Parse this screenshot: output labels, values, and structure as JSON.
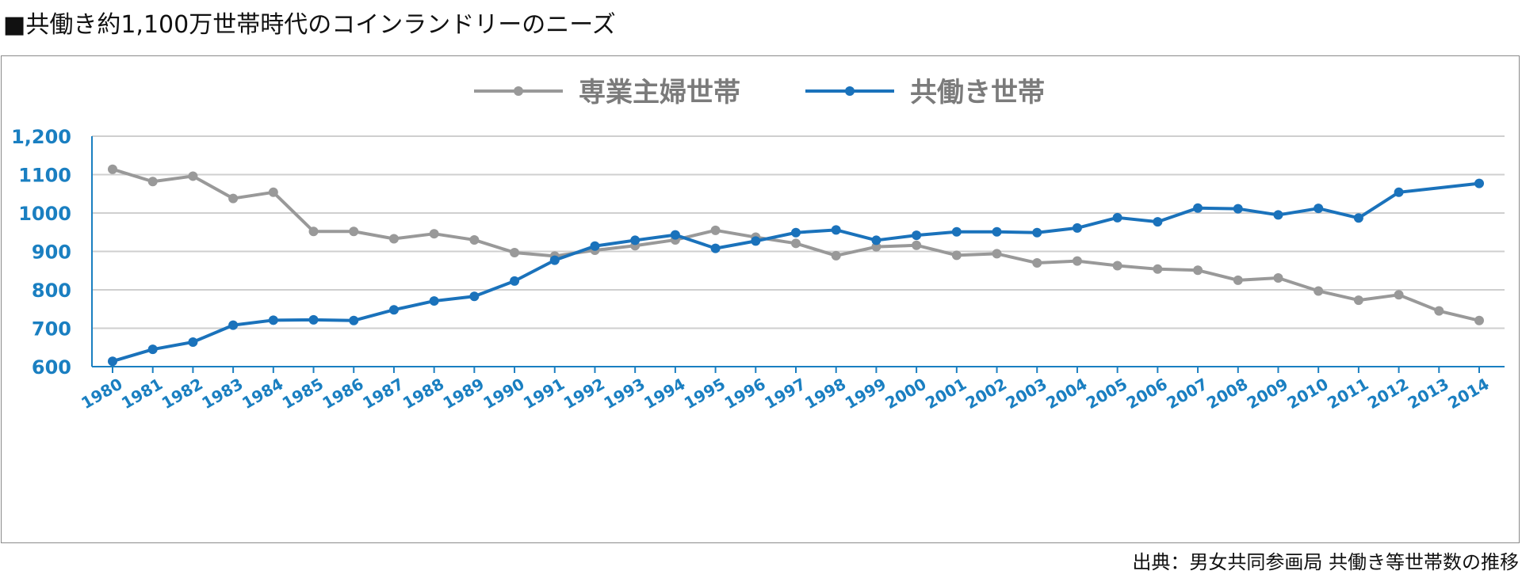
{
  "heading": "■共働き約1,100万世帯時代のコインランドリーのニーズ",
  "source": "出典：男女共同参画局 共働き等世帯数の推移",
  "chart_data": {
    "type": "line",
    "title": "",
    "xlabel": "",
    "ylabel": "",
    "ylim": [
      600,
      1200
    ],
    "y_ticks": [
      "600",
      "700",
      "800",
      "900",
      "1000",
      "1100",
      "1,200"
    ],
    "grid": true,
    "legend_position": "top-center",
    "x": [
      "1980",
      "1981",
      "1982",
      "1983",
      "1984",
      "1985",
      "1986",
      "1987",
      "1988",
      "1989",
      "1990",
      "1991",
      "1992",
      "1993",
      "1994",
      "1995",
      "1996",
      "1997",
      "1998",
      "1999",
      "2000",
      "2001",
      "2002",
      "2003",
      "2004",
      "2005",
      "2006",
      "2007",
      "2008",
      "2009",
      "2010",
      "2011",
      "2012",
      "2013",
      "2014"
    ],
    "series": [
      {
        "name": "専業主婦世帯",
        "color": "#999999",
        "values": [
          1114,
          1082,
          1096,
          1038,
          1054,
          952,
          952,
          933,
          946,
          930,
          897,
          888,
          903,
          915,
          930,
          955,
          937,
          921,
          889,
          912,
          916,
          890,
          894,
          870,
          875,
          863,
          854,
          851,
          825,
          831,
          797,
          773,
          787,
          745,
          720
        ]
      },
      {
        "name": "共働き世帯",
        "color": "#1a72bb",
        "values": [
          614,
          645,
          664,
          708,
          721,
          722,
          720,
          748,
          771,
          783,
          823,
          877,
          914,
          929,
          943,
          908,
          927,
          949,
          956,
          929,
          942,
          951,
          951,
          949,
          961,
          988,
          977,
          1013,
          1011,
          995,
          1012,
          987,
          1054,
          null,
          1077
        ]
      }
    ]
  }
}
